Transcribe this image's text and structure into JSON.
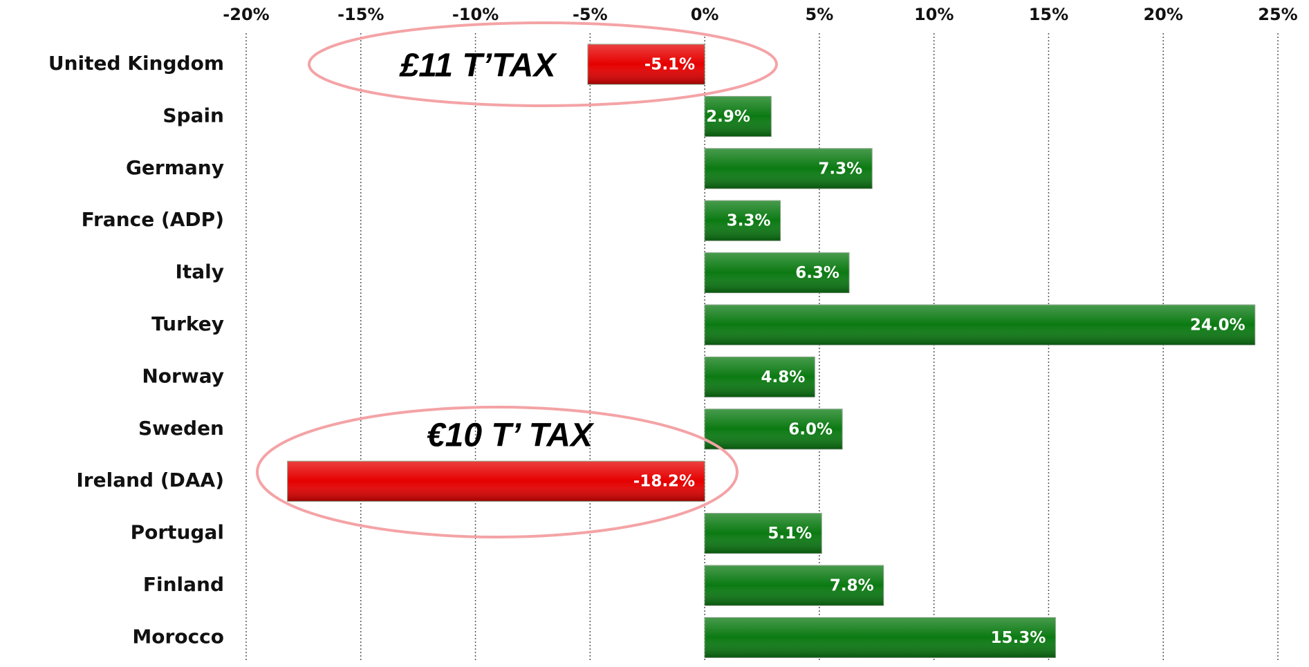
{
  "chart_data": {
    "type": "bar",
    "orientation": "horizontal",
    "categories": [
      "United Kingdom",
      "Spain",
      "Germany",
      "France (ADP)",
      "Italy",
      "Turkey",
      "Norway",
      "Sweden",
      "Ireland (DAA)",
      "Portugal",
      "Finland",
      "Morocco"
    ],
    "values": [
      -5.1,
      2.9,
      7.3,
      3.3,
      6.3,
      24.0,
      4.8,
      6.0,
      -18.2,
      5.1,
      7.8,
      15.3
    ],
    "value_labels": [
      "-5.1%",
      "2.9%",
      "7.3%",
      "3.3%",
      "6.3%",
      "24.0%",
      "4.8%",
      "6.0%",
      "-18.2%",
      "5.1%",
      "7.8%",
      "15.3%"
    ],
    "positive_color": "#0b7a12",
    "negative_color": "#e60000",
    "xlim": [
      -20,
      25
    ],
    "xticks": [
      {
        "value": -20,
        "label": "-20%"
      },
      {
        "value": -15,
        "label": "-15%"
      },
      {
        "value": -10,
        "label": "-10%"
      },
      {
        "value": -5,
        "label": "-5%"
      },
      {
        "value": 0,
        "label": "0%"
      },
      {
        "value": 5,
        "label": "5%"
      },
      {
        "value": 10,
        "label": "10%"
      },
      {
        "value": 15,
        "label": "15%"
      },
      {
        "value": 20,
        "label": "20%"
      },
      {
        "value": 25,
        "label": "25%"
      }
    ],
    "grid": true,
    "annotations": [
      "£11 T’TAX",
      "€10 T’ TAX"
    ]
  }
}
